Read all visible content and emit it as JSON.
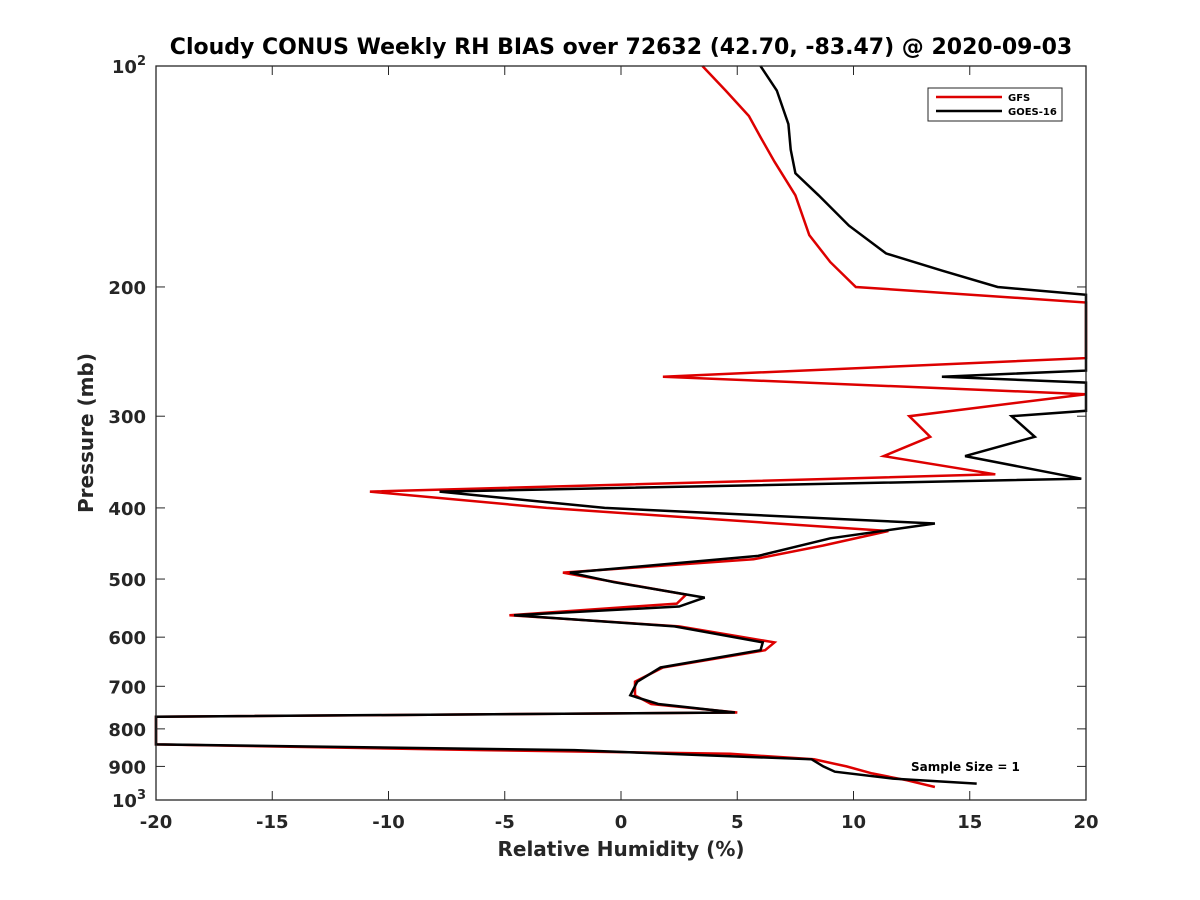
{
  "chart_data": {
    "type": "line",
    "title": "Cloudy CONUS Weekly RH BIAS over 72632 (42.70, -83.47) @ 2020-09-03",
    "xlabel": "Relative Humidity (%)",
    "ylabel": "Pressure (mb)",
    "xlim": [
      -20,
      20
    ],
    "ylim": [
      100,
      1000
    ],
    "yscale": "log",
    "y_reversed": true,
    "x_ticks": [
      "-20",
      "-15",
      "-10",
      "-5",
      "0",
      "5",
      "10",
      "15",
      "20"
    ],
    "x_tick_values": [
      -20,
      -15,
      -10,
      -5,
      0,
      5,
      10,
      15,
      20
    ],
    "y_tick_labels": [
      {
        "value": 100,
        "base": "10",
        "exp": "2"
      },
      {
        "value": 200,
        "base": "200",
        "exp": ""
      },
      {
        "value": 300,
        "base": "300",
        "exp": ""
      },
      {
        "value": 400,
        "base": "400",
        "exp": ""
      },
      {
        "value": 500,
        "base": "500",
        "exp": ""
      },
      {
        "value": 600,
        "base": "600",
        "exp": ""
      },
      {
        "value": 700,
        "base": "700",
        "exp": ""
      },
      {
        "value": 800,
        "base": "800",
        "exp": ""
      },
      {
        "value": 900,
        "base": "900",
        "exp": ""
      },
      {
        "value": 1000,
        "base": "10",
        "exp": "3"
      }
    ],
    "legend_position": "top-right",
    "grid": false,
    "annotation": "Sample Size = 1",
    "series": [
      {
        "name": "GFS",
        "color": "#dd0000",
        "points": [
          [
            3.5,
            100
          ],
          [
            4.5,
            108
          ],
          [
            5.5,
            117
          ],
          [
            6.0,
            125
          ],
          [
            6.6,
            135
          ],
          [
            7.5,
            150
          ],
          [
            8.1,
            170
          ],
          [
            9.0,
            185
          ],
          [
            10.1,
            200
          ],
          [
            20,
            210
          ],
          [
            20,
            250
          ],
          [
            1.8,
            265
          ],
          [
            20,
            280
          ],
          [
            12.4,
            300
          ],
          [
            13.3,
            320
          ],
          [
            11.3,
            340
          ],
          [
            16.1,
            360
          ],
          [
            -10.8,
            380
          ],
          [
            -3.2,
            400
          ],
          [
            11.5,
            430
          ],
          [
            8.7,
            450
          ],
          [
            5.7,
            470
          ],
          [
            -2.5,
            490
          ],
          [
            -1.0,
            500
          ],
          [
            2.8,
            525
          ],
          [
            2.4,
            540
          ],
          [
            -4.8,
            560
          ],
          [
            2.5,
            580
          ],
          [
            6.6,
            610
          ],
          [
            6.2,
            625
          ],
          [
            1.8,
            660
          ],
          [
            0.6,
            690
          ],
          [
            0.6,
            720
          ],
          [
            1.3,
            740
          ],
          [
            5.0,
            760
          ],
          [
            -20,
            770
          ],
          [
            -20,
            840
          ],
          [
            -6.0,
            855
          ],
          [
            4.7,
            865
          ],
          [
            8.3,
            880
          ],
          [
            9.7,
            900
          ],
          [
            10.8,
            920
          ],
          [
            12.3,
            940
          ],
          [
            13.5,
            960
          ]
        ]
      },
      {
        "name": "GOES-16",
        "color": "#000000",
        "points": [
          [
            6.0,
            100
          ],
          [
            6.7,
            108
          ],
          [
            7.2,
            120
          ],
          [
            7.3,
            130
          ],
          [
            7.5,
            140
          ],
          [
            8.5,
            150
          ],
          [
            9.8,
            165
          ],
          [
            11.4,
            180
          ],
          [
            13.8,
            190
          ],
          [
            16.2,
            200
          ],
          [
            20,
            205
          ],
          [
            20,
            260
          ],
          [
            13.8,
            265
          ],
          [
            20,
            270
          ],
          [
            20,
            295
          ],
          [
            16.8,
            300
          ],
          [
            17.8,
            320
          ],
          [
            14.8,
            340
          ],
          [
            19.8,
            365
          ],
          [
            -7.8,
            380
          ],
          [
            -0.7,
            400
          ],
          [
            13.5,
            420
          ],
          [
            9.0,
            440
          ],
          [
            5.9,
            465
          ],
          [
            -2.2,
            490
          ],
          [
            -0.3,
            505
          ],
          [
            3.6,
            530
          ],
          [
            2.5,
            545
          ],
          [
            -4.6,
            560
          ],
          [
            2.3,
            580
          ],
          [
            6.1,
            610
          ],
          [
            6.0,
            625
          ],
          [
            1.7,
            660
          ],
          [
            0.7,
            690
          ],
          [
            0.4,
            720
          ],
          [
            1.6,
            740
          ],
          [
            4.9,
            760
          ],
          [
            -20,
            770
          ],
          [
            -20,
            840
          ],
          [
            -2.0,
            855
          ],
          [
            4.0,
            870
          ],
          [
            8.2,
            880
          ],
          [
            8.7,
            900
          ],
          [
            9.2,
            915
          ],
          [
            11.7,
            935
          ],
          [
            15.3,
            950
          ]
        ]
      }
    ]
  }
}
